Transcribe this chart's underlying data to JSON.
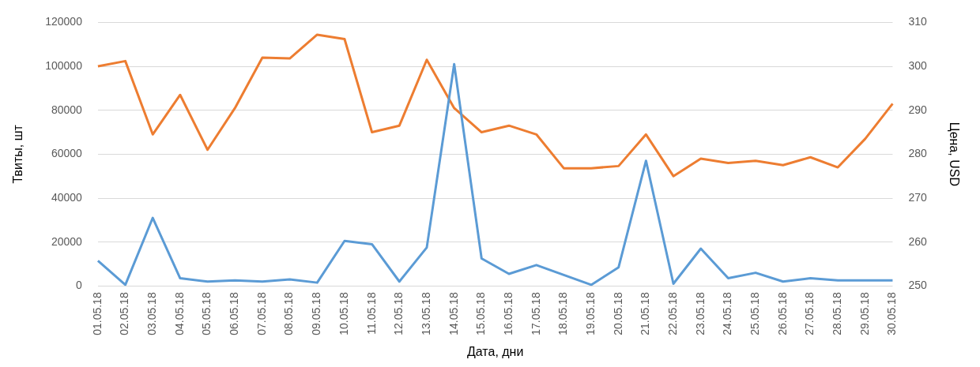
{
  "chart_data": {
    "type": "line",
    "xlabel": "Дата, дни",
    "ylabel": "Твиты, шт",
    "y2label": "Цена, USD",
    "categories": [
      "01.05.18",
      "02.05.18",
      "03.05.18",
      "04.05.18",
      "05.05.18",
      "06.05.18",
      "07.05.18",
      "08.05.18",
      "09.05.18",
      "10.05.18",
      "11.05.18",
      "12.05.18",
      "13.05.18",
      "14.05.18",
      "15.05.18",
      "16.05.18",
      "17.05.18",
      "18.05.18",
      "19.05.18",
      "20.05.18",
      "21.05.18",
      "22.05.18",
      "23.05.18",
      "24.05.18",
      "25.05.18",
      "26.05.18",
      "27.05.18",
      "28.05.18",
      "29.05.18",
      "30.05.18"
    ],
    "series": [
      {
        "color": "#5b9bd5",
        "values": [
          11500,
          500,
          31000,
          3500,
          2000,
          2500,
          2000,
          3000,
          1500,
          20500,
          19000,
          2000,
          17500,
          101000,
          12500,
          5500,
          9500,
          5000,
          500,
          8500,
          57000,
          1000,
          17000,
          3500,
          6000,
          2000,
          3500,
          2500,
          2500,
          2500
        ]
      },
      {
        "color": "#ed7d31",
        "axis": "y2",
        "values": [
          300,
          301.2,
          284.5,
          293.5,
          281,
          290.5,
          302,
          301.8,
          307.2,
          306.2,
          285,
          286.5,
          301.5,
          290.5,
          285,
          286.5,
          284.5,
          276.8,
          276.8,
          277.3,
          284.5,
          275,
          279,
          278,
          278.5,
          277.5,
          279.3,
          277,
          283.5,
          291.5
        ]
      }
    ],
    "ylim": [
      0,
      120000
    ],
    "yticks": [
      0,
      20000,
      40000,
      60000,
      80000,
      100000,
      120000
    ],
    "y2lim": [
      250,
      310
    ],
    "y2ticks": [
      250,
      260,
      270,
      280,
      290,
      300,
      310
    ],
    "grid": "y",
    "legend": false,
    "marker": "none",
    "line_style": "solid"
  }
}
